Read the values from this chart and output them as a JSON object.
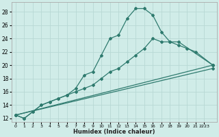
{
  "xlabel": "Humidex (Indice chaleur)",
  "xlim": [
    -0.5,
    23.5
  ],
  "ylim": [
    11.5,
    29.5
  ],
  "bg_color": "#d0ece8",
  "grid_color": "#b8d8d4",
  "line_color": "#2e7a6e",
  "series1_x": [
    0,
    1,
    2,
    3,
    4,
    5,
    6,
    7,
    8,
    9,
    10,
    11,
    12,
    13,
    14,
    15,
    16,
    17,
    18,
    19,
    23
  ],
  "series1_y": [
    12.5,
    12.0,
    13.0,
    14.0,
    14.5,
    15.0,
    15.5,
    16.5,
    18.5,
    19.0,
    21.5,
    24.0,
    24.5,
    27.0,
    28.5,
    28.5,
    27.5,
    25.0,
    23.5,
    23.5,
    20.0
  ],
  "series2_x": [
    0,
    1,
    2,
    3,
    4,
    5,
    6,
    7,
    8,
    9,
    10,
    11,
    12,
    13,
    14,
    15,
    16,
    17,
    18,
    19,
    20,
    21,
    23
  ],
  "series2_y": [
    12.5,
    12.0,
    13.0,
    14.0,
    14.5,
    15.0,
    15.5,
    16.0,
    16.5,
    17.0,
    18.0,
    19.0,
    19.5,
    20.5,
    21.5,
    22.5,
    24.0,
    23.5,
    23.5,
    23.0,
    22.5,
    22.0,
    20.0
  ],
  "series3_x": [
    0,
    23
  ],
  "series3_y": [
    12.5,
    20.0
  ],
  "series4_x": [
    0,
    23
  ],
  "series4_y": [
    12.5,
    19.5
  ],
  "yticks": [
    12,
    14,
    16,
    18,
    20,
    22,
    24,
    26,
    28
  ],
  "xtick_pos": [
    0,
    1,
    2,
    3,
    4,
    5,
    6,
    7,
    8,
    9,
    10,
    11,
    12,
    13,
    14,
    15,
    16,
    17,
    18,
    19,
    20,
    21,
    22
  ],
  "xtick_labels": [
    "0",
    "1",
    "2",
    "3",
    "4",
    "5",
    "6",
    "7",
    "8",
    "9",
    "10",
    "11",
    "12",
    "13",
    "14",
    "15",
    "16",
    "17",
    "18",
    "19",
    "20",
    "21",
    "2223"
  ]
}
